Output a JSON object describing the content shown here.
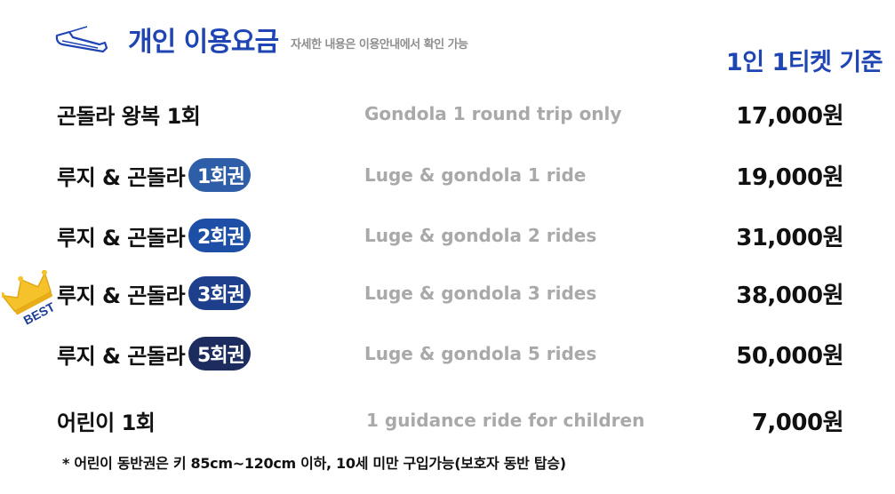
{
  "header": {
    "icon": "sled-icon",
    "title": "개인 이용요금",
    "subtitle": "자세한 내용은 이용안내에서 확인 가능"
  },
  "basis": "1인 1티켓 기준",
  "badge": {
    "icon": "crown-icon",
    "label": "BEST",
    "color": "#f5c22b"
  },
  "rows": [
    {
      "name": "곤돌라 왕복 1회",
      "pill": "",
      "en": "Gondola 1 round trip only",
      "price": "17,000원"
    },
    {
      "name": "루지 & 곤돌라",
      "pill": "1회권",
      "en": "Luge & gondola 1 ride",
      "price": "19,000원"
    },
    {
      "name": "루지 & 곤돌라",
      "pill": "2회권",
      "en": "Luge & gondola  2 rides",
      "price": "31,000원"
    },
    {
      "name": "루지 & 곤돌라",
      "pill": "3회권",
      "en": "Luge & gondola 3 rides",
      "price": "38,000원"
    },
    {
      "name": "루지 & 곤돌라",
      "pill": "5회권",
      "en": "Luge & gondola 5 rides",
      "price": "50,000원"
    },
    {
      "name": "어린이 1회",
      "pill": "",
      "en": "1 guidance ride for children",
      "price": "7,000원"
    }
  ],
  "note": "* 어린이 동반권은 키 85cm~120cm 이하, 10세 미만 구입가능(보호자 동반 탑승)",
  "colors": {
    "accent_blue": "#1f45b4",
    "muted_gray": "#a9a9a9",
    "pill_1": "#2f5ea8",
    "pill_2": "#1d4fa6",
    "pill_3": "#1d3f8c",
    "pill_5": "#1c2c5e"
  }
}
